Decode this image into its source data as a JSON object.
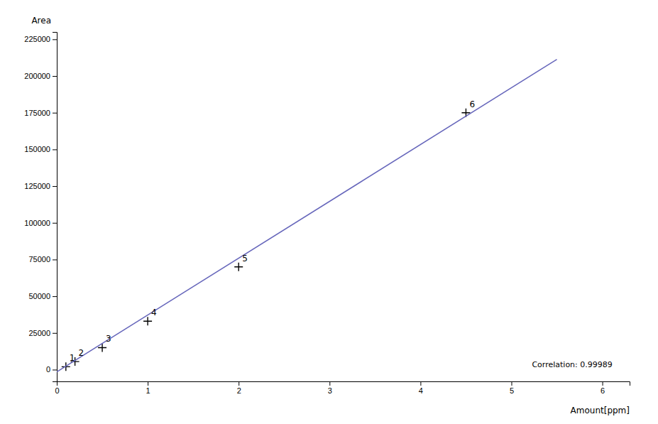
{
  "chart_data": {
    "type": "scatter",
    "x_label": "Amount[ppm]",
    "y_label": "Area",
    "annotation": "Correlation: 0.99989",
    "series": [
      {
        "type": "scatter",
        "marker": "plus",
        "color": "#000000",
        "x": [
          0.1,
          0.2,
          0.5,
          1.0,
          2.0,
          4.5
        ],
        "values": [
          2000,
          5500,
          15000,
          33000,
          70000,
          175000
        ],
        "labels": [
          "1",
          "2",
          "3",
          "4",
          "5",
          "6"
        ]
      },
      {
        "type": "line",
        "line_style": "solid",
        "color": "#6666bb",
        "x": [
          0.0,
          5.5
        ],
        "values": [
          -1500,
          211350
        ]
      }
    ],
    "xlim": [
      0.0,
      6.3
    ],
    "ylim": [
      -8000,
      230000
    ],
    "xticks": [
      0,
      1,
      2,
      3,
      4,
      5,
      6
    ],
    "yticks": [
      0,
      25000,
      50000,
      75000,
      100000,
      125000,
      150000,
      175000,
      200000,
      225000
    ],
    "grid": false
  }
}
